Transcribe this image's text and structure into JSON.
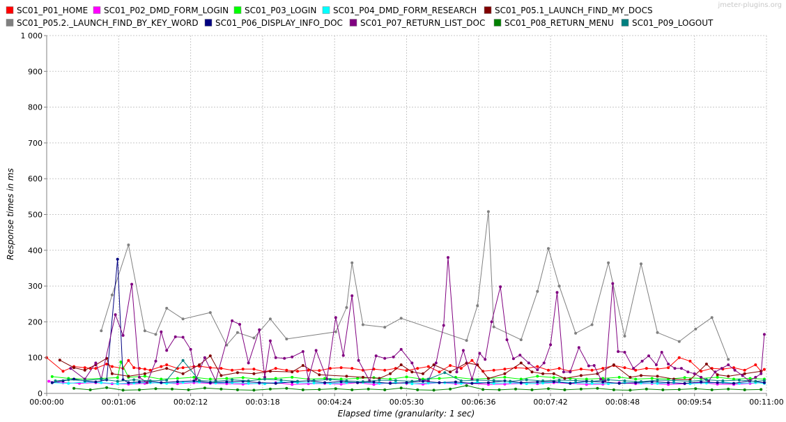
{
  "watermark": "jmeter-plugins.org",
  "chart_data": {
    "type": "line",
    "xlabel": "Elapsed time (granularity: 1 sec)",
    "ylabel": "Response times in ms",
    "x_range_sec": [
      0,
      660
    ],
    "xticks": [
      "00:00:00",
      "00:01:06",
      "00:02:12",
      "00:03:18",
      "00:04:24",
      "00:05:30",
      "00:06:36",
      "00:07:42",
      "00:08:48",
      "00:09:54",
      "00:11:00"
    ],
    "ylim": [
      0,
      1000
    ],
    "yticks": [
      "0",
      "100",
      "200",
      "300",
      "400",
      "500",
      "600",
      "700",
      "800",
      "900",
      "1 000"
    ],
    "grid": true,
    "legend_position": "top",
    "series": [
      {
        "name": "SC01_P01_HOME",
        "color": "#ff0000",
        "x": [
          0,
          15,
          25,
          35,
          40,
          45,
          55,
          60,
          70,
          75,
          80,
          85,
          90,
          95,
          105,
          110,
          120,
          125,
          135,
          140,
          150,
          160,
          170,
          180,
          190,
          200,
          210,
          220,
          230,
          240,
          250,
          260,
          270,
          280,
          290,
          300,
          310,
          320,
          330,
          340,
          350,
          360,
          370,
          380,
          390,
          400,
          410,
          420,
          430,
          440,
          450,
          460,
          470,
          480,
          490,
          500,
          510,
          520,
          530,
          540,
          550,
          560,
          570,
          580,
          590,
          600,
          610,
          620,
          630,
          640,
          650,
          655,
          658
        ],
        "y": [
          100,
          62,
          75,
          72,
          70,
          70,
          82,
          75,
          70,
          92,
          72,
          70,
          68,
          65,
          75,
          80,
          70,
          72,
          75,
          76,
          72,
          70,
          65,
          68,
          68,
          60,
          70,
          65,
          62,
          65,
          64,
          70,
          72,
          70,
          65,
          68,
          65,
          70,
          64,
          70,
          75,
          60,
          78,
          70,
          92,
          62,
          65,
          68,
          72,
          70,
          75,
          65,
          70,
          62,
          68,
          65,
          70,
          78,
          72,
          65,
          70,
          68,
          72,
          100,
          90,
          62,
          70,
          68,
          72,
          65,
          80,
          62,
          67
        ]
      },
      {
        "name": "SC01_P02_DMD_FORM_LOGIN",
        "color": "#ff00ff",
        "x": [
          2,
          15,
          30,
          45,
          60,
          75,
          90,
          105,
          120,
          135,
          150,
          165,
          180,
          195,
          210,
          225,
          240,
          255,
          270,
          285,
          300,
          315,
          330,
          345,
          360,
          375,
          390,
          405,
          420,
          435,
          450,
          465,
          480,
          495,
          510,
          525,
          540,
          555,
          570,
          585,
          600,
          615,
          630,
          645,
          658
        ],
        "y": [
          34,
          30,
          28,
          30,
          27,
          26,
          28,
          30,
          27,
          30,
          28,
          27,
          26,
          28,
          30,
          25,
          27,
          28,
          26,
          30,
          25,
          30,
          28,
          26,
          30,
          27,
          28,
          25,
          26,
          28,
          27,
          30,
          28,
          25,
          26,
          30,
          27,
          28,
          25,
          27,
          30,
          26,
          25,
          28,
          30
        ]
      },
      {
        "name": "SC01_P03_LOGIN",
        "color": "#00ff00",
        "x": [
          5,
          20,
          35,
          50,
          65,
          68,
          75,
          90,
          105,
          120,
          135,
          150,
          165,
          180,
          195,
          210,
          225,
          240,
          255,
          270,
          285,
          300,
          315,
          330,
          345,
          360,
          375,
          390,
          405,
          420,
          435,
          450,
          465,
          480,
          495,
          510,
          525,
          540,
          555,
          570,
          585,
          600,
          615,
          630,
          645,
          658
        ],
        "y": [
          47,
          42,
          40,
          42,
          44,
          88,
          45,
          48,
          40,
          42,
          45,
          40,
          42,
          44,
          40,
          42,
          45,
          40,
          42,
          40,
          42,
          44,
          40,
          46,
          40,
          42,
          45,
          40,
          42,
          45,
          40,
          48,
          44,
          42,
          40,
          42,
          45,
          40,
          42,
          40,
          44,
          42,
          45,
          40,
          42,
          40
        ]
      },
      {
        "name": "SC01_P04_DMD_FORM_RESEARCH",
        "color": "#00ffff",
        "x": [
          5,
          20,
          35,
          50,
          65,
          80,
          95,
          110,
          125,
          140,
          155,
          170,
          185,
          200,
          215,
          230,
          245,
          260,
          275,
          290,
          305,
          320,
          335,
          350,
          365,
          380,
          395,
          410,
          425,
          440,
          455,
          470,
          485,
          500,
          515,
          530,
          545,
          560,
          575,
          590,
          605,
          620,
          635,
          650,
          658
        ],
        "y": [
          30,
          28,
          32,
          30,
          27,
          29,
          30,
          28,
          31,
          32,
          29,
          30,
          28,
          27,
          32,
          30,
          29,
          28,
          30,
          31,
          28,
          30,
          27,
          29,
          30,
          28,
          31,
          28,
          30,
          27,
          29,
          32,
          30,
          28,
          27,
          30,
          29,
          28,
          30,
          27,
          29,
          31,
          28,
          30,
          28
        ]
      },
      {
        "name": "SC01_P05.1_LAUNCH_FIND_MY_DOCS",
        "color": "#800000",
        "x": [
          12,
          25,
          35,
          45,
          55,
          60,
          75,
          90,
          110,
          125,
          140,
          150,
          160,
          175,
          190,
          205,
          225,
          235,
          250,
          275,
          290,
          305,
          315,
          325,
          335,
          345,
          355,
          370,
          385,
          395,
          405,
          420,
          435,
          445,
          455,
          465,
          475,
          490,
          505,
          520,
          535,
          545,
          560,
          575,
          590,
          605,
          615,
          625,
          640,
          655
        ],
        "y": [
          93,
          72,
          65,
          80,
          98,
          55,
          48,
          55,
          70,
          55,
          80,
          105,
          50,
          58,
          55,
          62,
          60,
          78,
          52,
          48,
          45,
          42,
          55,
          80,
          60,
          55,
          80,
          60,
          85,
          80,
          42,
          55,
          85,
          60,
          55,
          55,
          42,
          50,
          55,
          80,
          45,
          50,
          48,
          40,
          38,
          82,
          52,
          48,
          55,
          62
        ]
      },
      {
        "name": "SC01_P05.2._LAUNCH_FIND_BY_KEY_WORD",
        "color": "#808080",
        "x": [
          50,
          60,
          75,
          90,
          100,
          110,
          125,
          150,
          165,
          175,
          190,
          205,
          220,
          265,
          275,
          280,
          290,
          310,
          325,
          385,
          395,
          405,
          410,
          435,
          450,
          460,
          470,
          485,
          500,
          515,
          530,
          545,
          560,
          580,
          595,
          610,
          625
        ],
        "y": [
          175,
          275,
          415,
          175,
          165,
          238,
          208,
          226,
          135,
          170,
          155,
          208,
          152,
          172,
          240,
          365,
          192,
          185,
          210,
          148,
          245,
          508,
          186,
          150,
          285,
          405,
          300,
          168,
          192,
          365,
          160,
          362,
          170,
          145,
          180,
          212,
          95
        ]
      },
      {
        "name": "SC01_P06_DISPLAY_INFO_DOC",
        "color": "#000080",
        "x": [
          5,
          15,
          25,
          35,
          45,
          55,
          65,
          70,
          75,
          85,
          95,
          105,
          120,
          135,
          150,
          165,
          180,
          195,
          210,
          225,
          240,
          255,
          270,
          285,
          300,
          315,
          330,
          345,
          360,
          375,
          390,
          405,
          420,
          435,
          450,
          465,
          480,
          495,
          510,
          525,
          540,
          555,
          570,
          585,
          600,
          615,
          630,
          645,
          658
        ],
        "y": [
          30,
          35,
          40,
          35,
          32,
          38,
          375,
          38,
          30,
          32,
          34,
          30,
          33,
          35,
          30,
          32,
          34,
          30,
          28,
          32,
          35,
          30,
          33,
          30,
          32,
          28,
          30,
          34,
          30,
          32,
          28,
          30,
          35,
          30,
          32,
          33,
          28,
          34,
          32,
          28,
          30,
          33,
          30,
          28,
          32,
          30,
          28,
          35,
          30
        ]
      },
      {
        "name": "SC01_P07_RETURN_LIST_DOC",
        "color": "#800080",
        "x": [
          22,
          35,
          45,
          50,
          63,
          70,
          78,
          85,
          92,
          100,
          105,
          110,
          118,
          125,
          132,
          137,
          145,
          155,
          170,
          177,
          185,
          195,
          200,
          205,
          210,
          218,
          225,
          235,
          240,
          247,
          257,
          265,
          272,
          280,
          286,
          296,
          302,
          310,
          318,
          325,
          335,
          342,
          350,
          357,
          364,
          368,
          376,
          382,
          390,
          397,
          402,
          408,
          416,
          422,
          428,
          434,
          442,
          450,
          456,
          462,
          468,
          474,
          480,
          488,
          497,
          502,
          508,
          512,
          519,
          524,
          530,
          538,
          546,
          552,
          559,
          564,
          570,
          576,
          582,
          588,
          594,
          600,
          607,
          613,
          619,
          625,
          631,
          638,
          644,
          650,
          655,
          658
        ],
        "y": [
          70,
          40,
          85,
          40,
          220,
          162,
          305,
          45,
          30,
          90,
          172,
          120,
          158,
          157,
          123,
          40,
          100,
          35,
          203,
          193,
          85,
          178,
          45,
          147,
          100,
          98,
          102,
          117,
          40,
          120,
          40,
          212,
          106,
          273,
          92,
          35,
          105,
          98,
          102,
          123,
          85,
          38,
          35,
          85,
          190,
          380,
          60,
          120,
          40,
          112,
          95,
          200,
          298,
          150,
          97,
          107,
          85,
          66,
          85,
          136,
          282,
          60,
          60,
          128,
          77,
          78,
          40,
          36,
          307,
          117,
          115,
          70,
          90,
          105,
          80,
          115,
          82,
          70,
          70,
          60,
          55,
          45,
          35,
          60,
          70,
          80,
          65,
          50,
          35,
          45,
          55,
          165
        ]
      },
      {
        "name": "SC01_P08_RETURN_MENU",
        "color": "#008000",
        "x": [
          25,
          40,
          55,
          70,
          85,
          100,
          115,
          130,
          145,
          160,
          175,
          190,
          205,
          220,
          235,
          250,
          265,
          280,
          295,
          310,
          325,
          340,
          355,
          370,
          385,
          400,
          415,
          430,
          445,
          460,
          475,
          490,
          505,
          520,
          535,
          550,
          565,
          580,
          595,
          610,
          625,
          640,
          655
        ],
        "y": [
          14,
          10,
          16,
          9,
          10,
          13,
          12,
          10,
          15,
          12,
          10,
          9,
          12,
          14,
          10,
          11,
          13,
          10,
          12,
          10,
          15,
          10,
          9,
          12,
          22,
          11,
          10,
          12,
          10,
          13,
          10,
          12,
          14,
          10,
          9,
          12,
          10,
          11,
          13,
          10,
          12,
          10,
          11
        ]
      },
      {
        "name": "SC01_P09_LOGOUT",
        "color": "#008080",
        "x": [
          8,
          20,
          35,
          50,
          65,
          80,
          95,
          110,
          125,
          140,
          155,
          170,
          185,
          200,
          215,
          230,
          245,
          260,
          275,
          290,
          305,
          320,
          335,
          350,
          365,
          380,
          395,
          410,
          425,
          440,
          455,
          470,
          485,
          500,
          515,
          530,
          545,
          560,
          575,
          590,
          605,
          620,
          635,
          650,
          658
        ],
        "y": [
          35,
          38,
          36,
          40,
          34,
          38,
          35,
          37,
          92,
          36,
          34,
          38,
          35,
          40,
          37,
          34,
          36,
          39,
          35,
          33,
          37,
          36,
          34,
          40,
          58,
          35,
          37,
          36,
          34,
          38,
          35,
          37,
          36,
          34,
          38,
          35,
          33,
          37,
          36,
          34,
          38,
          35,
          37,
          34,
          36
        ]
      }
    ]
  }
}
